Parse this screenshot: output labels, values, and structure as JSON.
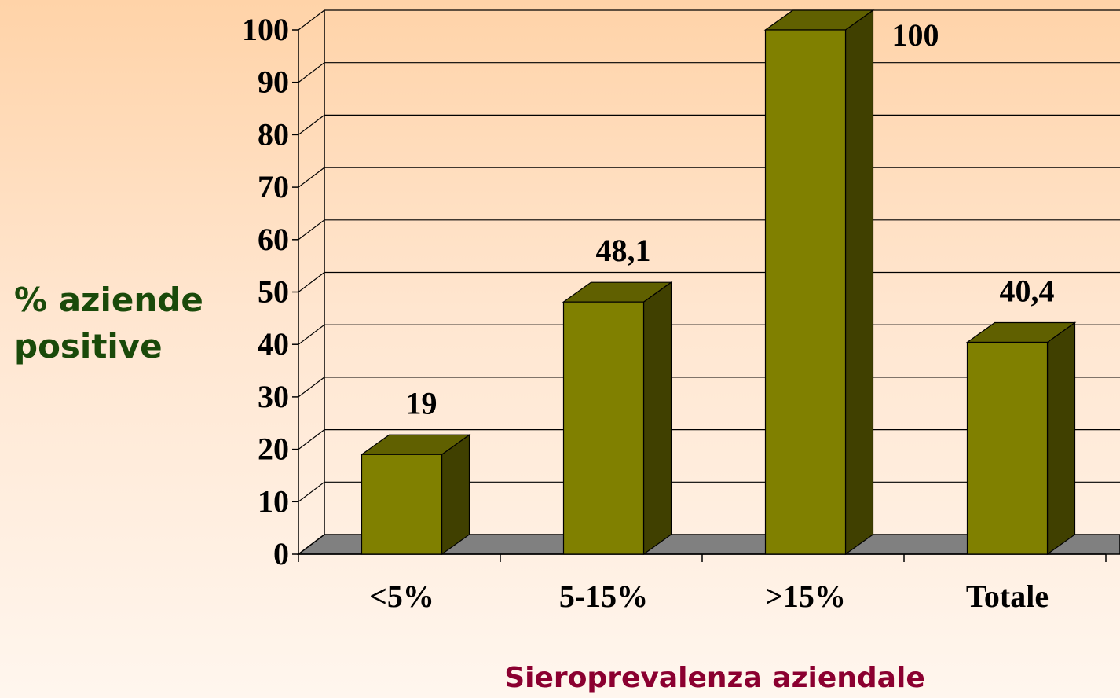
{
  "chart_data": {
    "type": "bar3d",
    "categories": [
      "<5%",
      "5-15%",
      ">15%",
      "Totale"
    ],
    "values": [
      19,
      48.1,
      100,
      40.4
    ],
    "value_labels": [
      "19",
      "48,1",
      "100",
      "40,4"
    ],
    "ylim": [
      0,
      100
    ],
    "yticks": [
      0,
      10,
      20,
      30,
      40,
      50,
      60,
      70,
      80,
      90,
      100
    ],
    "y_label": "% aziende positive",
    "x_label": "Sieroprevalenza aziendale",
    "color": "#808000",
    "grid": true
  }
}
